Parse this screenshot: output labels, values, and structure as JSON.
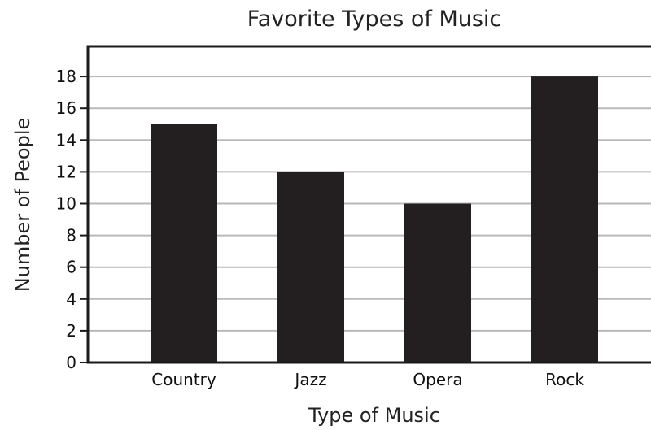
{
  "chart_data": {
    "type": "bar",
    "title": "Favorite Types of Music",
    "xlabel": "Type of Music",
    "ylabel": "Number of People",
    "categories": [
      "Country",
      "Jazz",
      "Opera",
      "Rock"
    ],
    "values": [
      15,
      12,
      10,
      18
    ],
    "ylim": [
      0,
      18
    ],
    "yticks": [
      "0",
      "2",
      "4",
      "6",
      "8",
      "10",
      "12",
      "14",
      "16",
      "18"
    ],
    "grid": true,
    "colors": {
      "bar": "#231f20",
      "grid": "#b9b9b9",
      "frame": "#1a1a1a"
    }
  }
}
